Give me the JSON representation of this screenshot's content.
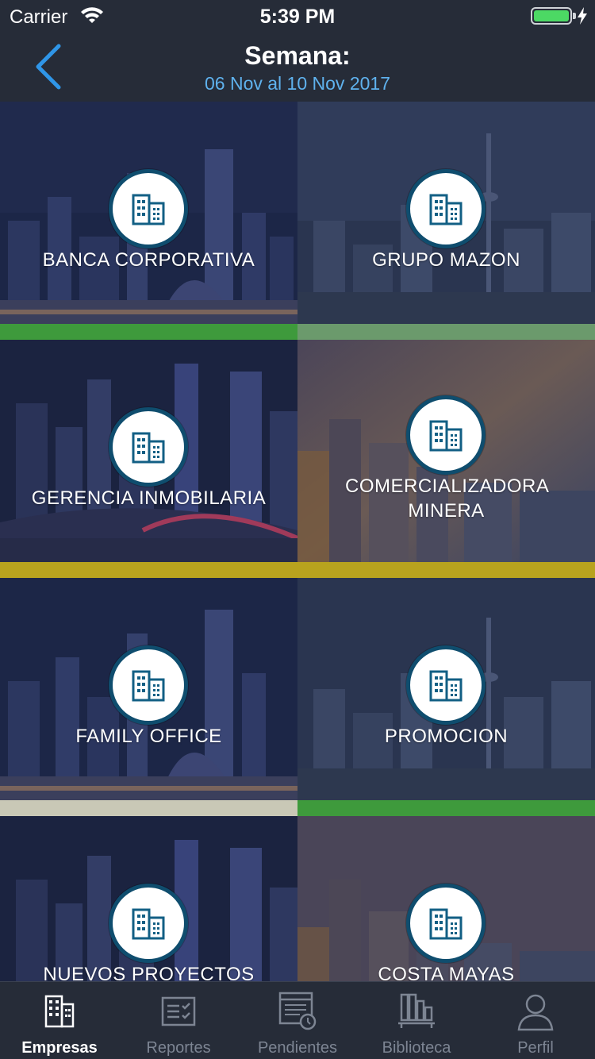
{
  "status_bar": {
    "carrier": "Carrier",
    "time": "5:39 PM",
    "battery_color": "#4cd964"
  },
  "nav": {
    "title": "Semana:",
    "subtitle": "06 Nov al 10 Nov 2017",
    "back_icon": "chevron-left-icon",
    "accent": "#2f96e8"
  },
  "tiles": [
    {
      "label": "BANCA CORPORATIVA",
      "bar_color": "#3e9a3c",
      "icon": "building-icon"
    },
    {
      "label": "GRUPO MAZON",
      "bar_color": "#6b9a6c",
      "icon": "building-icon"
    },
    {
      "label": "GERENCIA INMOBILARIA",
      "bar_color": "#b8a31e",
      "icon": "building-icon"
    },
    {
      "label": "COMERCIALIZADORA MINERA",
      "bar_color": "#b8a31e",
      "icon": "building-icon"
    },
    {
      "label": "FAMILY OFFICE",
      "bar_color": "#c9c8b6",
      "icon": "building-icon"
    },
    {
      "label": "PROMOCION",
      "bar_color": "#3e9a3c",
      "icon": "building-icon"
    },
    {
      "label": "NUEVOS PROYECTOS",
      "bar_color": "#3e9a3c",
      "icon": "building-icon"
    },
    {
      "label": "COSTA MAYAS",
      "bar_color": "#3e9a3c",
      "icon": "building-icon"
    }
  ],
  "tab_bar": {
    "items": [
      {
        "label": "Empresas",
        "icon": "building-icon",
        "active": true
      },
      {
        "label": "Reportes",
        "icon": "report-icon",
        "active": false
      },
      {
        "label": "Pendientes",
        "icon": "pending-list-icon",
        "active": false
      },
      {
        "label": "Biblioteca",
        "icon": "library-icon",
        "active": false
      },
      {
        "label": "Perfil",
        "icon": "profile-icon",
        "active": false
      }
    ]
  }
}
